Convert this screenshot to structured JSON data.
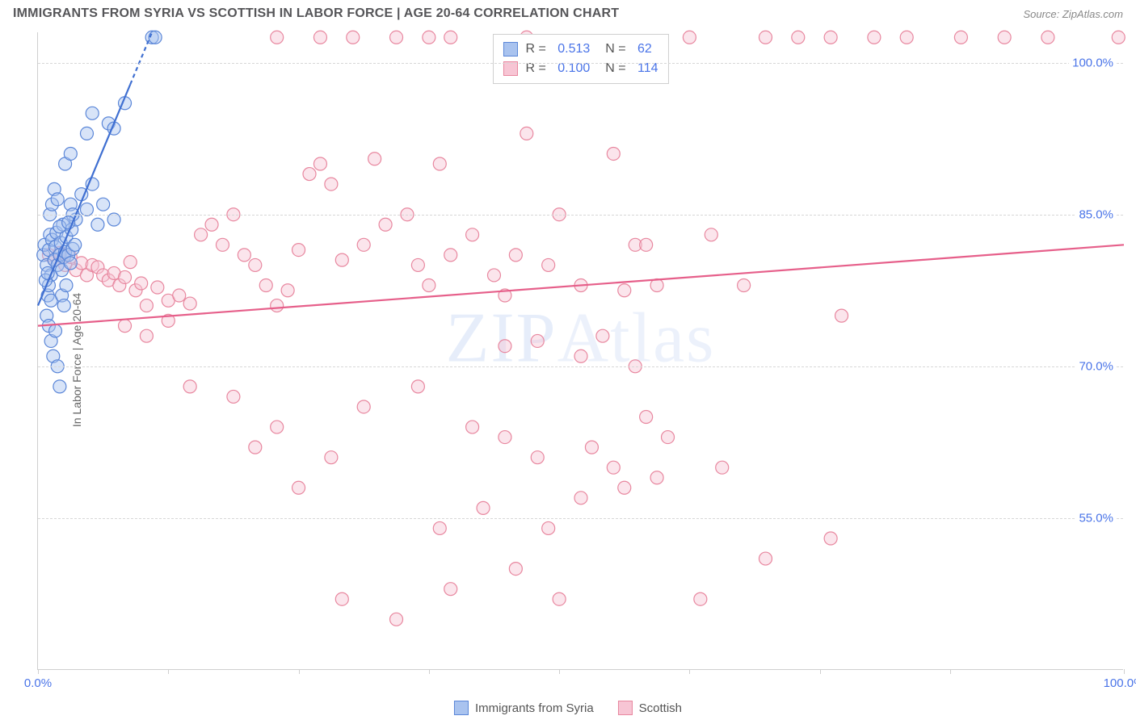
{
  "header": {
    "title": "IMMIGRANTS FROM SYRIA VS SCOTTISH IN LABOR FORCE | AGE 20-64 CORRELATION CHART",
    "source_prefix": "Source: ",
    "source_name": "ZipAtlas.com"
  },
  "y_axis_title": "In Labor Force | Age 20-64",
  "watermark": {
    "bold": "ZIP",
    "thin": "Atlas"
  },
  "chart": {
    "type": "scatter",
    "background_color": "#ffffff",
    "grid_color": "#d7d7d7",
    "axis_color": "#cfcfcf",
    "tick_label_color": "#4a74e8",
    "xlim": [
      0,
      100
    ],
    "ylim": [
      40,
      103
    ],
    "ytick_values": [
      55.0,
      70.0,
      85.0,
      100.0
    ],
    "ytick_labels": [
      "55.0%",
      "70.0%",
      "85.0%",
      "100.0%"
    ],
    "xtick_values": [
      0,
      12,
      24,
      36,
      48,
      60,
      72,
      84,
      100
    ],
    "xtick_major": {
      "positions": [
        0,
        100
      ],
      "labels": [
        "0.0%",
        "100.0%"
      ]
    },
    "marker_radius": 8,
    "marker_stroke_width": 1.2,
    "line_width": 2.2
  },
  "series_a": {
    "label": "Immigrants from Syria",
    "color_fill": "#a9c3ef",
    "color_stroke": "#5a86d8",
    "color_line": "#3f6fd1",
    "fill_opacity": 0.45,
    "stats": {
      "R": "0.513",
      "N": "62"
    },
    "regression": {
      "x1": 0,
      "y1": 76,
      "x2": 10.5,
      "y2": 103,
      "dash_start_x": 8.5
    },
    "points": [
      [
        0.5,
        81
      ],
      [
        0.6,
        82
      ],
      [
        0.8,
        80
      ],
      [
        1.0,
        81.5
      ],
      [
        1.1,
        83
      ],
      [
        1.2,
        79
      ],
      [
        1.3,
        82.5
      ],
      [
        1.5,
        80.5
      ],
      [
        1.6,
        81.8
      ],
      [
        1.7,
        83.2
      ],
      [
        1.8,
        80
      ],
      [
        2.0,
        81
      ],
      [
        2.1,
        82.2
      ],
      [
        2.2,
        79.5
      ],
      [
        2.3,
        84
      ],
      [
        2.4,
        80.8
      ],
      [
        2.5,
        81.3
      ],
      [
        2.6,
        82.8
      ],
      [
        2.8,
        81
      ],
      [
        3.0,
        80.2
      ],
      [
        3.1,
        83.5
      ],
      [
        3.2,
        81.6
      ],
      [
        3.4,
        82
      ],
      [
        3.5,
        84.5
      ],
      [
        0.8,
        75
      ],
      [
        1.0,
        74
      ],
      [
        1.2,
        72.5
      ],
      [
        1.4,
        71
      ],
      [
        1.6,
        73.5
      ],
      [
        1.8,
        70
      ],
      [
        2.0,
        68
      ],
      [
        0.9,
        77
      ],
      [
        1.0,
        78
      ],
      [
        1.2,
        76.5
      ],
      [
        3.0,
        86
      ],
      [
        3.2,
        85
      ],
      [
        4.0,
        87
      ],
      [
        4.5,
        85.5
      ],
      [
        5.0,
        88
      ],
      [
        5.5,
        84
      ],
      [
        6.0,
        86
      ],
      [
        7.0,
        84.5
      ],
      [
        2.5,
        90
      ],
      [
        3.0,
        91
      ],
      [
        4.5,
        93
      ],
      [
        5.0,
        95
      ],
      [
        6.5,
        94
      ],
      [
        7.0,
        93.5
      ],
      [
        8.0,
        96
      ],
      [
        10.5,
        102.5
      ],
      [
        10.8,
        102.5
      ],
      [
        1.1,
        85
      ],
      [
        1.3,
        86
      ],
      [
        1.5,
        87.5
      ],
      [
        1.8,
        86.5
      ],
      [
        0.7,
        78.5
      ],
      [
        0.9,
        79.2
      ],
      [
        2.2,
        77
      ],
      [
        2.4,
        76
      ],
      [
        2.6,
        78
      ],
      [
        2.0,
        83.8
      ],
      [
        2.8,
        84.2
      ]
    ]
  },
  "series_b": {
    "label": "Scottish",
    "color_fill": "#f7c5d4",
    "color_stroke": "#e8879f",
    "color_line": "#e65f8a",
    "fill_opacity": 0.45,
    "stats": {
      "R": "0.100",
      "N": "114"
    },
    "regression": {
      "x1": 0,
      "y1": 74,
      "x2": 100,
      "y2": 82
    },
    "points": [
      [
        1.0,
        81
      ],
      [
        1.5,
        80.5
      ],
      [
        2.0,
        81.2
      ],
      [
        2.5,
        80
      ],
      [
        3.0,
        80.8
      ],
      [
        3.5,
        79.5
      ],
      [
        4.0,
        80.2
      ],
      [
        4.5,
        79
      ],
      [
        5.0,
        80
      ],
      [
        5.5,
        79.8
      ],
      [
        6.0,
        79
      ],
      [
        6.5,
        78.5
      ],
      [
        7.0,
        79.2
      ],
      [
        7.5,
        78
      ],
      [
        8.0,
        78.8
      ],
      [
        8.5,
        80.3
      ],
      [
        9.0,
        77.5
      ],
      [
        9.5,
        78.2
      ],
      [
        10.0,
        76
      ],
      [
        11.0,
        77.8
      ],
      [
        12.0,
        76.5
      ],
      [
        13.0,
        77
      ],
      [
        14.0,
        76.2
      ],
      [
        15.0,
        83
      ],
      [
        16.0,
        84
      ],
      [
        17.0,
        82
      ],
      [
        18.0,
        85
      ],
      [
        19.0,
        81
      ],
      [
        20.0,
        80
      ],
      [
        21.0,
        78
      ],
      [
        22.0,
        76
      ],
      [
        23.0,
        77.5
      ],
      [
        24.0,
        81.5
      ],
      [
        25.0,
        89
      ],
      [
        26.0,
        90
      ],
      [
        27.0,
        88
      ],
      [
        28.0,
        80.5
      ],
      [
        30.0,
        82
      ],
      [
        31.0,
        90.5
      ],
      [
        32.0,
        84
      ],
      [
        34.0,
        85
      ],
      [
        35.0,
        80
      ],
      [
        36.0,
        78
      ],
      [
        37.0,
        90
      ],
      [
        38.0,
        81
      ],
      [
        40.0,
        83
      ],
      [
        42.0,
        79
      ],
      [
        43.0,
        77
      ],
      [
        44.0,
        81
      ],
      [
        45.0,
        93
      ],
      [
        47.0,
        80
      ],
      [
        48.0,
        85
      ],
      [
        50.0,
        78
      ],
      [
        53.0,
        91
      ],
      [
        54.0,
        77.5
      ],
      [
        55.0,
        82
      ],
      [
        57.0,
        78
      ],
      [
        60.0,
        102.5
      ],
      [
        62.0,
        83
      ],
      [
        65.0,
        78
      ],
      [
        67.0,
        102.5
      ],
      [
        70.0,
        102.5
      ],
      [
        73.0,
        102.5
      ],
      [
        74.0,
        75
      ],
      [
        77.0,
        102.5
      ],
      [
        80.0,
        102.5
      ],
      [
        85.0,
        102.5
      ],
      [
        89.0,
        102.5
      ],
      [
        93.0,
        102.5
      ],
      [
        99.5,
        102.5
      ],
      [
        22.0,
        102.5
      ],
      [
        26.0,
        102.5
      ],
      [
        29.0,
        102.5
      ],
      [
        33.0,
        102.5
      ],
      [
        36.0,
        102.5
      ],
      [
        38.0,
        102.5
      ],
      [
        45.0,
        102.5
      ],
      [
        14.0,
        68
      ],
      [
        18.0,
        67
      ],
      [
        20.0,
        62
      ],
      [
        22.0,
        64
      ],
      [
        24.0,
        58
      ],
      [
        27.0,
        61
      ],
      [
        28.0,
        47
      ],
      [
        30.0,
        66
      ],
      [
        33.0,
        45
      ],
      [
        35.0,
        68
      ],
      [
        37.0,
        54
      ],
      [
        38.0,
        48
      ],
      [
        40.0,
        64
      ],
      [
        41.0,
        56
      ],
      [
        43.0,
        63
      ],
      [
        44.0,
        50
      ],
      [
        46.0,
        61
      ],
      [
        47.0,
        54
      ],
      [
        48.0,
        47
      ],
      [
        50.0,
        57
      ],
      [
        51.0,
        62
      ],
      [
        53.0,
        60
      ],
      [
        54.0,
        58
      ],
      [
        56.0,
        65
      ],
      [
        57.0,
        59
      ],
      [
        58.0,
        63
      ],
      [
        61.0,
        47
      ],
      [
        63.0,
        60
      ],
      [
        67.0,
        51
      ],
      [
        73.0,
        53
      ],
      [
        43.0,
        72
      ],
      [
        46.0,
        72.5
      ],
      [
        50.0,
        71
      ],
      [
        52.0,
        73
      ],
      [
        55.0,
        70
      ],
      [
        8.0,
        74
      ],
      [
        10.0,
        73
      ],
      [
        12.0,
        74.5
      ],
      [
        56.0,
        82
      ]
    ]
  },
  "bottom_legend": {
    "items": [
      {
        "label_key": "series_a.label",
        "fill_key": "series_a.color_fill",
        "stroke_key": "series_a.color_stroke"
      },
      {
        "label_key": "series_b.label",
        "fill_key": "series_b.color_fill",
        "stroke_key": "series_b.color_stroke"
      }
    ]
  }
}
